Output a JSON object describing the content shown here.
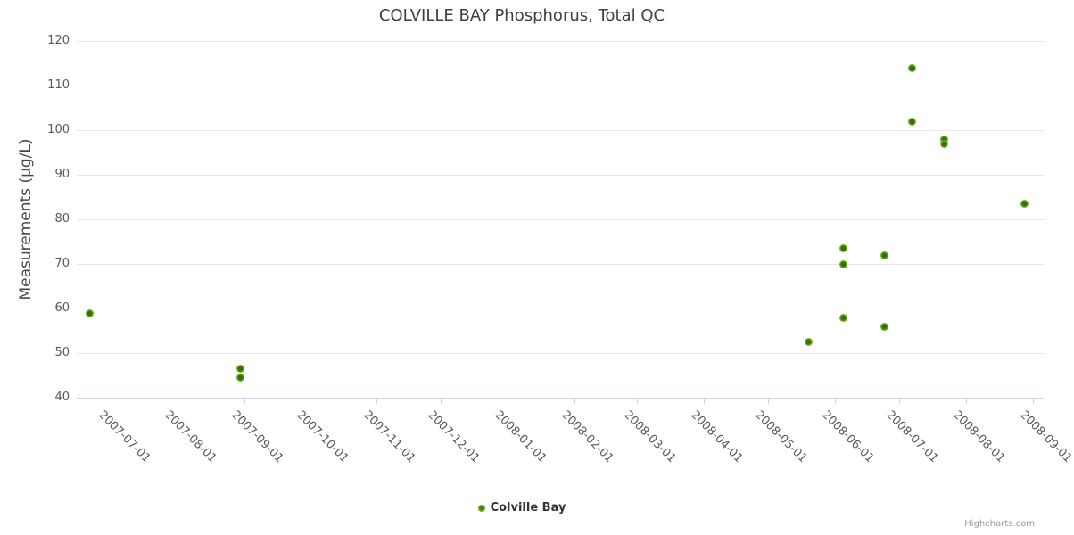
{
  "chart": {
    "title": "COLVILLE BAY Phosphorus, Total QC",
    "credits": "Highcharts.com"
  },
  "chart_data": {
    "type": "scatter",
    "title": "COLVILLE BAY Phosphorus, Total QC",
    "xlabel": "",
    "ylabel": "Measurements (µg/L)",
    "x_axis_type": "datetime",
    "x_range": [
      "2007-06-15",
      "2008-09-06"
    ],
    "x_ticks": [
      "2007-07-01",
      "2007-08-01",
      "2007-09-01",
      "2007-10-01",
      "2007-11-01",
      "2007-12-01",
      "2008-01-01",
      "2008-02-01",
      "2008-03-01",
      "2008-04-01",
      "2008-05-01",
      "2008-06-01",
      "2008-07-01",
      "2008-08-01",
      "2008-09-01"
    ],
    "ylim": [
      40,
      120
    ],
    "y_ticks": [
      40,
      50,
      60,
      70,
      80,
      90,
      100,
      110,
      120
    ],
    "grid": "horizontal",
    "legend_position": "bottom-center",
    "series": [
      {
        "name": "Colville Bay",
        "color": "#76b41a",
        "marker_core_color": "#2e6c10",
        "points": [
          [
            "2007-06-21",
            59
          ],
          [
            "2007-08-30",
            46.5
          ],
          [
            "2007-08-30",
            44.5
          ],
          [
            "2008-05-20",
            52.5
          ],
          [
            "2008-06-05",
            73.5
          ],
          [
            "2008-06-05",
            70
          ],
          [
            "2008-06-05",
            58
          ],
          [
            "2008-06-24",
            72
          ],
          [
            "2008-06-24",
            56
          ],
          [
            "2008-07-07",
            114
          ],
          [
            "2008-07-07",
            102
          ],
          [
            "2008-07-22",
            98
          ],
          [
            "2008-07-22",
            97
          ],
          [
            "2008-08-28",
            83.5
          ]
        ]
      }
    ],
    "colors": {
      "grid": "#e6e6e6",
      "axis_line": "#ccd6eb",
      "tick_label": "#56595d",
      "title": "#374149",
      "axis_title": "#45494d",
      "legend_label": "#333333",
      "credits": "#999999"
    }
  }
}
